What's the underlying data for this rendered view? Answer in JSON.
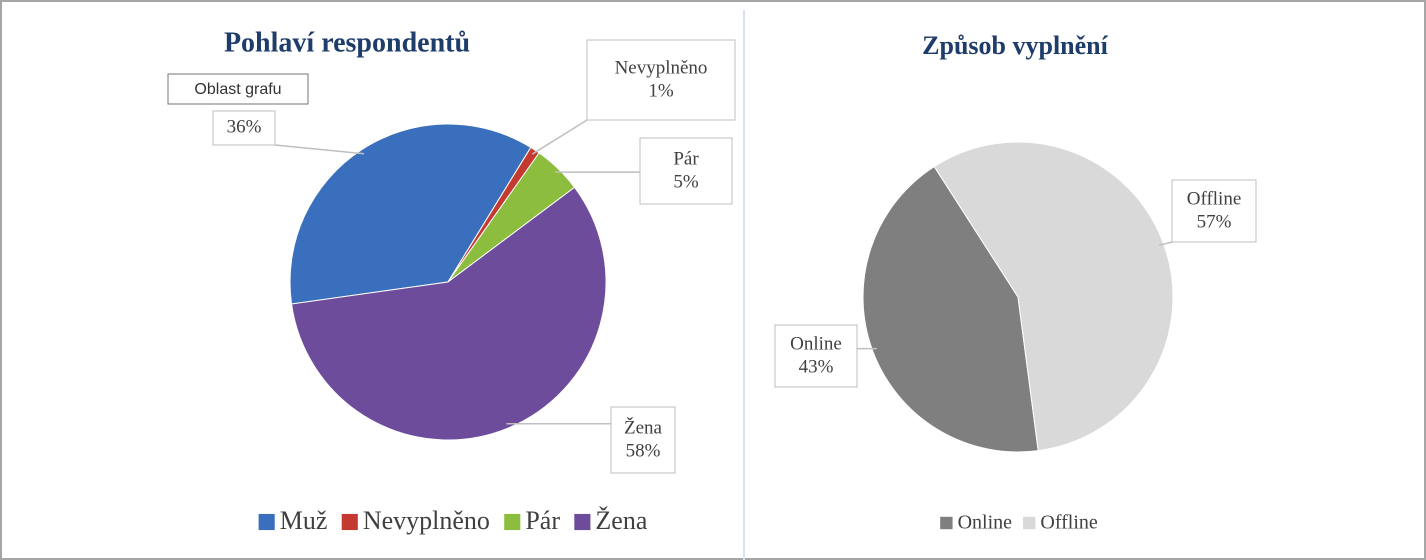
{
  "chart_data": [
    {
      "type": "pie",
      "title": "Pohlaví respondentů",
      "categories": [
        "Muž",
        "Nevyplněno",
        "Pár",
        "Žena"
      ],
      "values": [
        36,
        1,
        5,
        58
      ],
      "value_labels": [
        "36%",
        "1%",
        "5%",
        "58%"
      ],
      "colors": [
        "#3a6fbe",
        "#c43a31",
        "#8cbd3f",
        "#6e4c9c"
      ],
      "legend": "bottom"
    },
    {
      "type": "pie",
      "title": "Způsob vyplnění",
      "categories": [
        "Online",
        "Offline"
      ],
      "values": [
        43,
        57
      ],
      "value_labels": [
        "43%",
        "57%"
      ],
      "colors": [
        "#7f7f7f",
        "#d9d9d9"
      ],
      "legend": "bottom"
    }
  ],
  "tooltip": "Oblast grafu"
}
